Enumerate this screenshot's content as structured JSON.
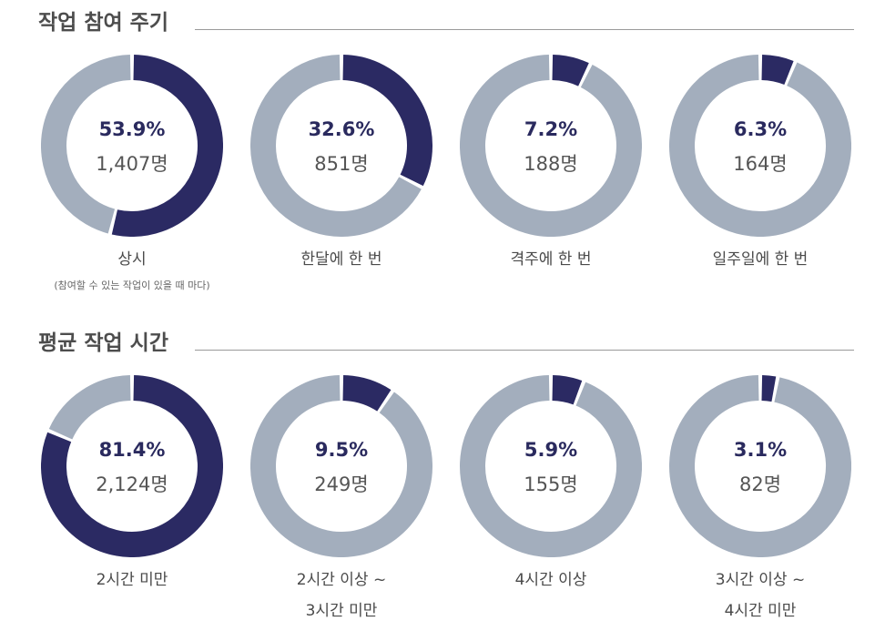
{
  "colors": {
    "filled": "#2b2a63",
    "track": "#a3aebd"
  },
  "chart_data": [
    {
      "type": "pie",
      "title": "작업 참여 주기",
      "categories": [
        "상시",
        "한달에 한 번",
        "격주에 한 번",
        "일주일에 한 번"
      ],
      "values": [
        53.9,
        32.6,
        7.2,
        6.3
      ],
      "counts": [
        "1,407명",
        "851명",
        "188명",
        "164명"
      ],
      "percent_labels": [
        "53.9%",
        "32.6%",
        "7.2%",
        "6.3%"
      ],
      "label_lines": [
        [
          "상시"
        ],
        [
          "한달에 한 번"
        ],
        [
          "격주에 한 번"
        ],
        [
          "일주일에 한 번"
        ]
      ],
      "notes": [
        "(참여할 수 있는 작업이 있을 때 마다)",
        "",
        "",
        ""
      ]
    },
    {
      "type": "pie",
      "title": "평균 작업 시간",
      "categories": [
        "2시간 미만",
        "2시간 이상 ~ 3시간 미만",
        "4시간 이상",
        "3시간 이상 ~ 4시간 미만"
      ],
      "values": [
        81.4,
        9.5,
        5.9,
        3.1
      ],
      "counts": [
        "2,124명",
        "249명",
        "155명",
        "82명"
      ],
      "percent_labels": [
        "81.4%",
        "9.5%",
        "5.9%",
        "3.1%"
      ],
      "label_lines": [
        [
          "2시간 미만"
        ],
        [
          "2시간 이상 ~",
          "3시간 미만"
        ],
        [
          "4시간 이상"
        ],
        [
          "3시간 이상 ~",
          "4시간 미만"
        ]
      ],
      "notes": [
        "",
        "",
        "",
        ""
      ]
    }
  ]
}
